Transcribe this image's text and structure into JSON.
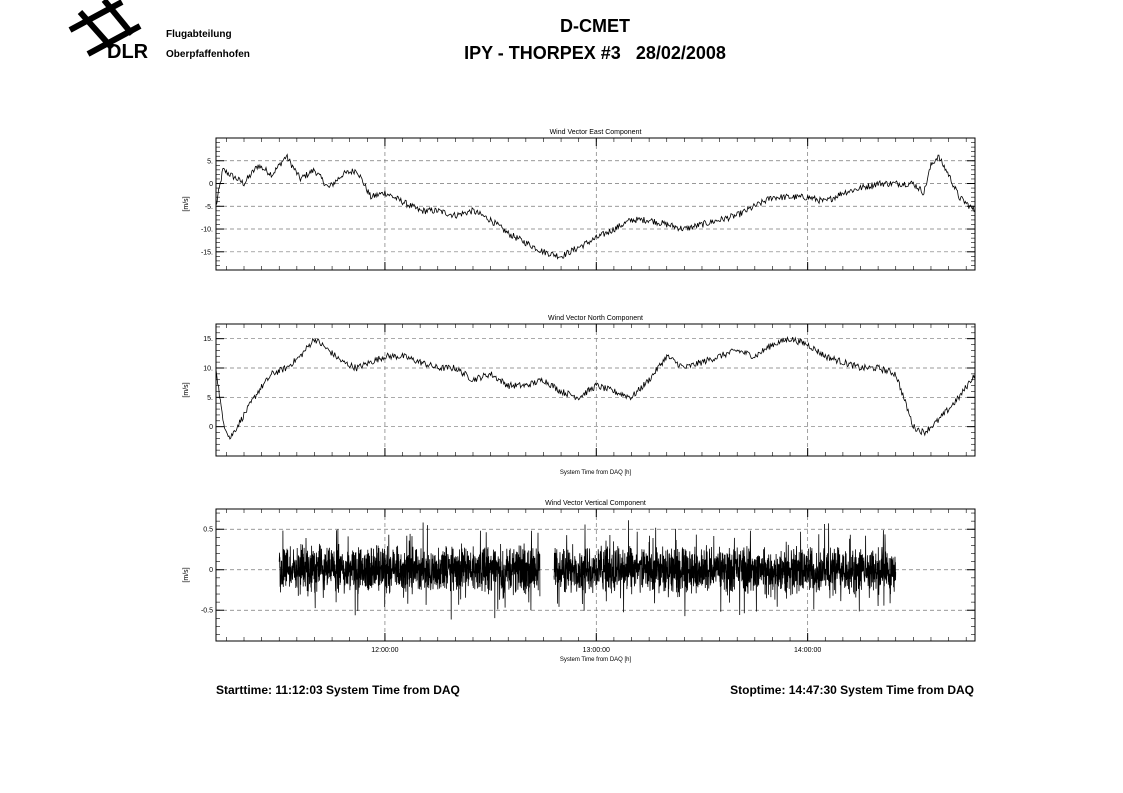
{
  "header": {
    "org_name": "DLR",
    "dept_line1": "Flugabteilung",
    "dept_line2": "Oberpfaffenhofen",
    "title": "D-CMET",
    "subtitle": "IPY - THORPEX #3   28/02/2008"
  },
  "footer": {
    "start": "Starttime: 11:12:03 System Time from DAQ",
    "stop": "Stoptime: 14:47:30 System Time from DAQ"
  },
  "chart_data": [
    {
      "type": "line",
      "title": "Wind Vector East Component",
      "ylabel": "[m/s]",
      "xlabel": "",
      "xlim": [
        "11:12:03",
        "14:47:30"
      ],
      "ylim": [
        -19,
        10
      ],
      "yticks": [
        5,
        0,
        -5,
        -10,
        -15
      ],
      "ytick_labels": [
        "5.",
        "0",
        "-5.",
        "-10.",
        "-15."
      ],
      "xticks": [
        "12:00:00",
        "13:00:00",
        "14:00:00"
      ],
      "grid": true,
      "x": [
        "11:12:03",
        "11:14",
        "11:16",
        "11:20",
        "11:24",
        "11:28",
        "11:32",
        "11:36",
        "11:40",
        "11:44",
        "11:48",
        "11:52",
        "11:56",
        "12:00",
        "12:05",
        "12:10",
        "12:15",
        "12:20",
        "12:25",
        "12:30",
        "12:35",
        "12:40",
        "12:45",
        "12:50",
        "12:55",
        "13:00",
        "13:05",
        "13:10",
        "13:15",
        "13:20",
        "13:25",
        "13:30",
        "13:35",
        "13:40",
        "13:45",
        "13:50",
        "13:55",
        "14:00",
        "14:05",
        "14:10",
        "14:15",
        "14:20",
        "14:25",
        "14:30",
        "14:33",
        "14:35",
        "14:37",
        "14:40",
        "14:43",
        "14:47:30"
      ],
      "y": [
        -5,
        3,
        2,
        0,
        4,
        2,
        6,
        1,
        3,
        -1,
        2,
        3,
        -3,
        -2,
        -4,
        -6,
        -6,
        -7,
        -6,
        -8,
        -11,
        -13,
        -15,
        -16,
        -14,
        -12,
        -10,
        -8,
        -8,
        -9,
        -10,
        -9,
        -8,
        -7,
        -5,
        -3,
        -3,
        -3,
        -4,
        -2,
        -1,
        0,
        0,
        0,
        -2,
        4,
        6,
        2,
        -3,
        -6
      ]
    },
    {
      "type": "line",
      "title": "Wind Vector North Component",
      "ylabel": "[m/s]",
      "xlabel": "System Time from DAQ [h]",
      "xlim": [
        "11:12:03",
        "14:47:30"
      ],
      "ylim": [
        -5,
        17.5
      ],
      "yticks": [
        15,
        10,
        5,
        0
      ],
      "ytick_labels": [
        "15.",
        "10.",
        "5.",
        "0"
      ],
      "xticks": [
        "12:00:00",
        "13:00:00",
        "14:00:00"
      ],
      "grid": true,
      "x": [
        "11:12:03",
        "11:14",
        "11:16",
        "11:20",
        "11:24",
        "11:28",
        "11:32",
        "11:36",
        "11:40",
        "11:44",
        "11:48",
        "11:52",
        "11:56",
        "12:00",
        "12:05",
        "12:10",
        "12:15",
        "12:20",
        "12:25",
        "12:30",
        "12:35",
        "12:40",
        "12:45",
        "12:50",
        "12:55",
        "13:00",
        "13:05",
        "13:10",
        "13:15",
        "13:20",
        "13:25",
        "13:30",
        "13:35",
        "13:40",
        "13:45",
        "13:50",
        "13:55",
        "14:00",
        "14:05",
        "14:10",
        "14:15",
        "14:20",
        "14:25",
        "14:30",
        "14:33",
        "14:35",
        "14:37",
        "14:40",
        "14:43",
        "14:47:30"
      ],
      "y": [
        10,
        1,
        -2,
        2,
        6,
        9,
        10,
        12,
        15,
        13,
        11,
        10,
        11,
        12,
        12,
        11,
        10,
        10,
        8,
        9,
        7,
        7,
        8,
        6,
        5,
        7,
        6,
        5,
        8,
        12,
        10,
        11,
        12,
        13,
        12,
        14,
        15,
        14,
        12,
        11,
        10,
        10,
        9,
        0,
        -1,
        0,
        1,
        3,
        5,
        9
      ]
    },
    {
      "type": "line",
      "title": "Wind Vector Vertical Component",
      "ylabel": "[m/s]",
      "xlabel": "System Time from DAQ [h]",
      "xlim": [
        "11:12:03",
        "14:47:30"
      ],
      "ylim": [
        -0.88,
        0.75
      ],
      "yticks": [
        0.5,
        0,
        -0.5
      ],
      "ytick_labels": [
        "0.5",
        "0",
        "-0.5"
      ],
      "xticks": [
        "12:00:00",
        "13:00:00",
        "14:00:00"
      ],
      "grid": true,
      "segments": [
        [
          "11:30",
          "12:44"
        ],
        [
          "12:48",
          "14:25"
        ]
      ],
      "y_range": [
        -0.75,
        0.62
      ]
    }
  ]
}
